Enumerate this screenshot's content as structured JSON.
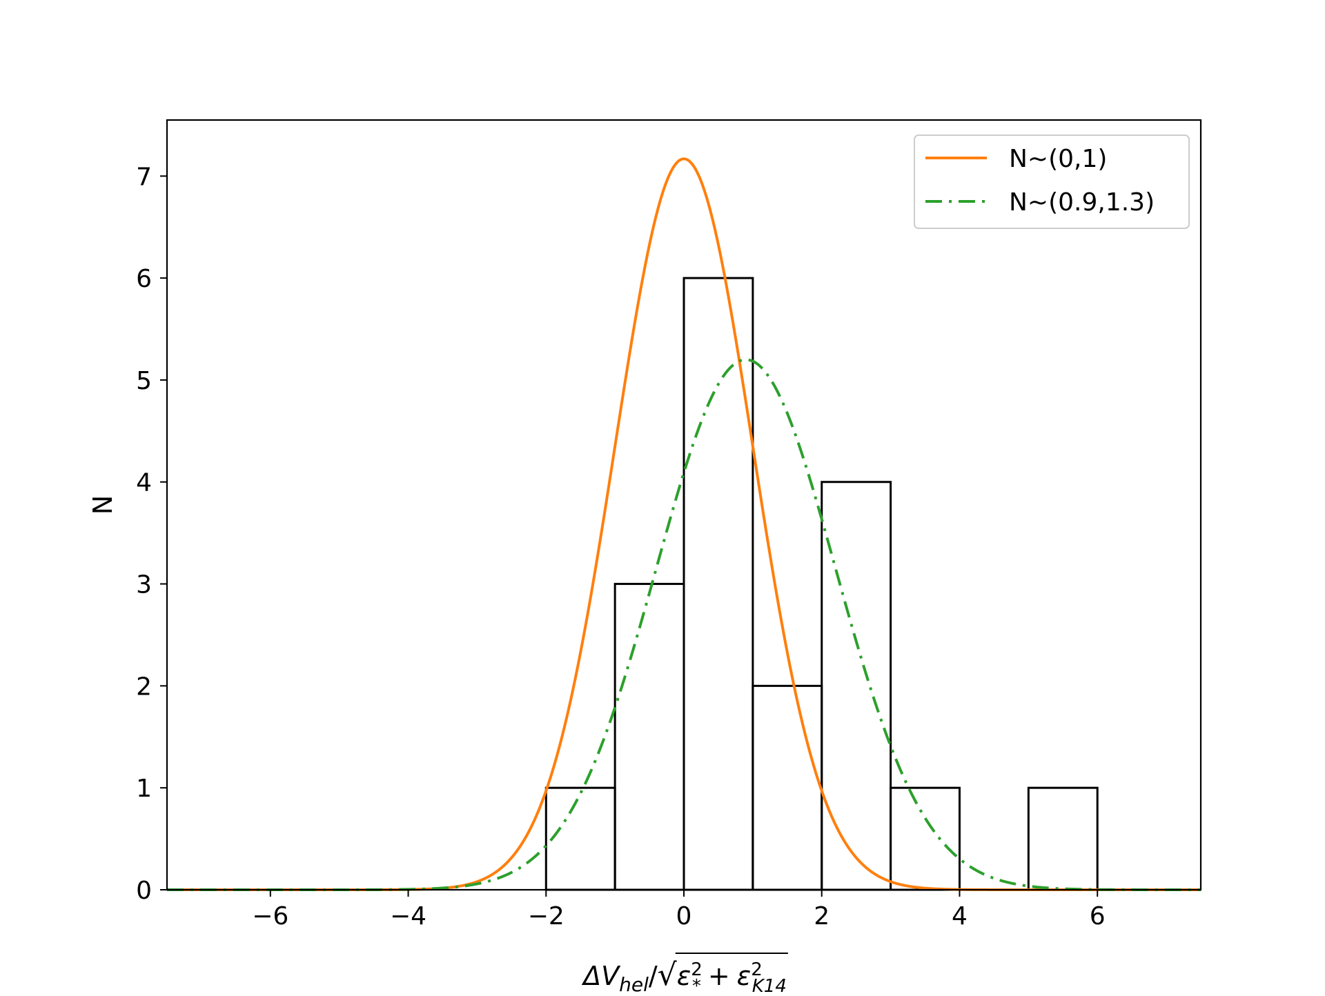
{
  "chart_data": {
    "type": "bar",
    "xlabel_parts": {
      "delta_v": "ΔV",
      "hel": "hel",
      "slash": "/",
      "sqrt": "√",
      "eps": "ε",
      "sq": "2",
      "star": "*",
      "plus": "+",
      "k14": "K14"
    },
    "ylabel": "N",
    "xlim": [
      -7.5,
      7.5
    ],
    "ylim": [
      0,
      7.55
    ],
    "xticks": [
      -6,
      -4,
      -2,
      0,
      2,
      4,
      6
    ],
    "xtick_labels": [
      "−6",
      "−4",
      "−2",
      "0",
      "2",
      "4",
      "6"
    ],
    "yticks": [
      0,
      1,
      2,
      3,
      4,
      5,
      6,
      7
    ],
    "ytick_labels": [
      "0",
      "1",
      "2",
      "3",
      "4",
      "5",
      "6",
      "7"
    ],
    "histogram": {
      "bin_edges": [
        -2,
        -1,
        0,
        1,
        2,
        3,
        4,
        5,
        6
      ],
      "counts": [
        1,
        3,
        6,
        2,
        4,
        1,
        0,
        1
      ],
      "edgecolor": "#000000",
      "fill": "none"
    },
    "series": [
      {
        "name": "N~(0,1)",
        "mu": 0,
        "sigma": 1,
        "peak": 7.17,
        "color": "#ff7f0e",
        "style": "solid"
      },
      {
        "name": "N~(0.9,1.3)",
        "mu": 0.9,
        "sigma": 1.3,
        "peak": 5.2,
        "color": "#2ca02c",
        "style": "dashdot"
      }
    ],
    "legend_position": "top-right",
    "grid": false
  }
}
